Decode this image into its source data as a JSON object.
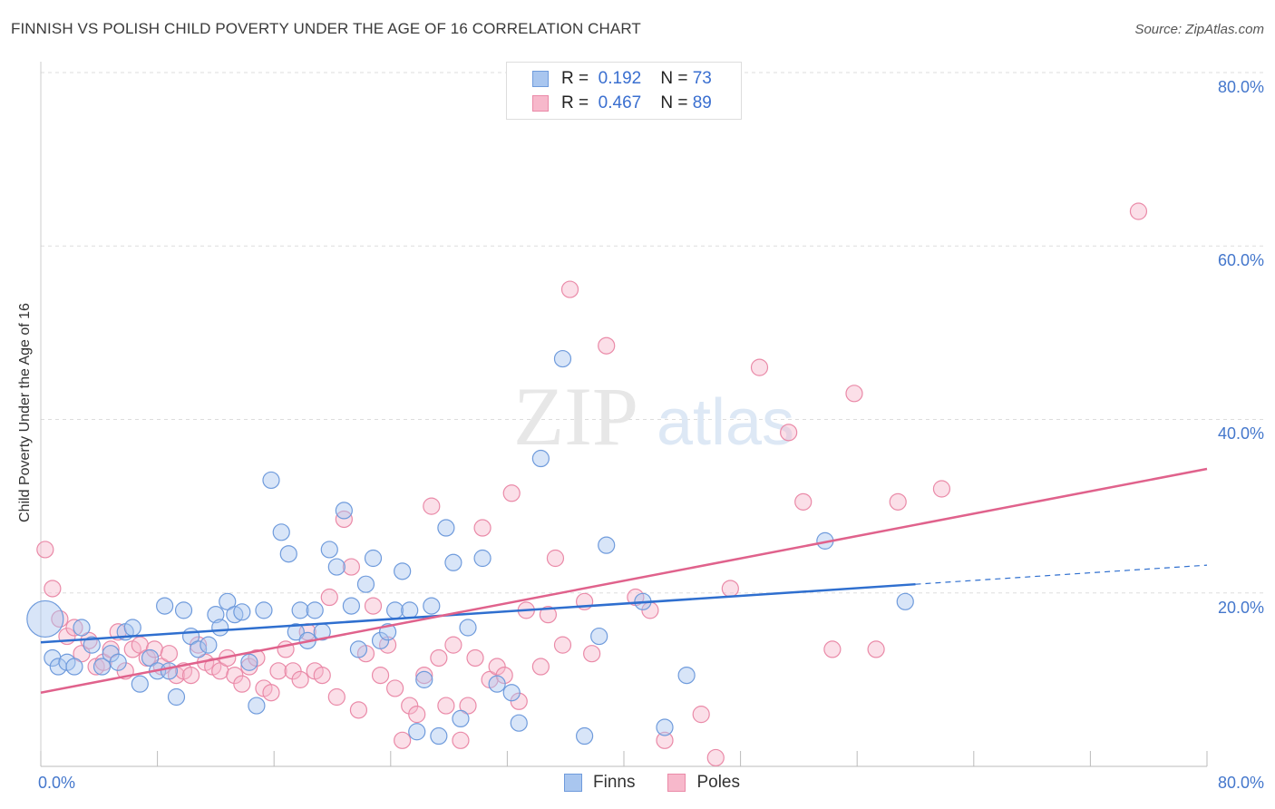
{
  "header": {
    "title": "FINNISH VS POLISH CHILD POVERTY UNDER THE AGE OF 16 CORRELATION CHART",
    "source": "Source: ZipAtlas.com"
  },
  "watermark": {
    "zip": "ZIP",
    "atlas": "atlas"
  },
  "legend": {
    "finns": {
      "r_label": "R =",
      "r_value": "0.192",
      "n_label": "N =",
      "n_value": "73"
    },
    "poles": {
      "r_label": "R =",
      "r_value": "0.467",
      "n_label": "N =",
      "n_value": "89"
    }
  },
  "bottom_legend": {
    "finns": "Finns",
    "poles": "Poles"
  },
  "colors": {
    "finns_fill": "#a9c6ef",
    "finns_stroke": "#6f9bdc",
    "finns_line": "#2f6fcf",
    "poles_fill": "#f7b8cb",
    "poles_stroke": "#ea8aa8",
    "poles_line": "#e0628c",
    "tick_text": "#4477cc",
    "grid": "#dddddd"
  },
  "chart_data": {
    "type": "scatter",
    "title": "FINNISH VS POLISH CHILD POVERTY UNDER THE AGE OF 16 CORRELATION CHART",
    "xlabel": "",
    "ylabel": "Child Poverty Under the Age of 16",
    "xlim": [
      0,
      80
    ],
    "ylim": [
      0,
      80
    ],
    "x_tick_labels": [
      "0.0%",
      "80.0%"
    ],
    "y_tick_labels": [
      "20.0%",
      "40.0%",
      "60.0%",
      "80.0%"
    ],
    "y_ticks": [
      20,
      40,
      60,
      80
    ],
    "grid": true,
    "legend_position": "top-center",
    "series": [
      {
        "name": "Finns",
        "r": 0.192,
        "n": 73,
        "trend": {
          "x": [
            0,
            60
          ],
          "y": [
            14.3,
            21.0
          ],
          "dashed_to": [
            80,
            23.2
          ]
        },
        "points": [
          [
            0.3,
            17.0
          ],
          [
            0.8,
            12.5
          ],
          [
            1.2,
            11.5
          ],
          [
            1.8,
            12.0
          ],
          [
            2.3,
            11.5
          ],
          [
            2.8,
            16.0
          ],
          [
            3.5,
            14.0
          ],
          [
            4.2,
            11.5
          ],
          [
            4.8,
            13.0
          ],
          [
            5.3,
            12.0
          ],
          [
            5.8,
            15.5
          ],
          [
            6.3,
            16.0
          ],
          [
            6.8,
            9.5
          ],
          [
            7.5,
            12.5
          ],
          [
            8.0,
            11.0
          ],
          [
            8.5,
            18.5
          ],
          [
            8.8,
            11.0
          ],
          [
            9.3,
            8.0
          ],
          [
            9.8,
            18.0
          ],
          [
            10.3,
            15.0
          ],
          [
            10.8,
            13.5
          ],
          [
            11.5,
            14.0
          ],
          [
            12.0,
            17.5
          ],
          [
            12.3,
            16.0
          ],
          [
            12.8,
            19.0
          ],
          [
            13.3,
            17.5
          ],
          [
            13.8,
            17.8
          ],
          [
            14.3,
            12.0
          ],
          [
            14.8,
            7.0
          ],
          [
            15.3,
            18.0
          ],
          [
            15.8,
            33.0
          ],
          [
            16.5,
            27.0
          ],
          [
            17.0,
            24.5
          ],
          [
            17.5,
            15.5
          ],
          [
            17.8,
            18.0
          ],
          [
            18.3,
            14.5
          ],
          [
            18.8,
            18.0
          ],
          [
            19.3,
            15.5
          ],
          [
            19.8,
            25.0
          ],
          [
            20.3,
            23.0
          ],
          [
            20.8,
            29.5
          ],
          [
            21.3,
            18.5
          ],
          [
            21.8,
            13.5
          ],
          [
            22.3,
            21.0
          ],
          [
            22.8,
            24.0
          ],
          [
            23.3,
            14.5
          ],
          [
            23.8,
            15.5
          ],
          [
            24.3,
            18.0
          ],
          [
            24.8,
            22.5
          ],
          [
            25.3,
            18.0
          ],
          [
            25.8,
            4.0
          ],
          [
            26.3,
            10.0
          ],
          [
            26.8,
            18.5
          ],
          [
            27.3,
            3.5
          ],
          [
            27.8,
            27.5
          ],
          [
            28.3,
            23.5
          ],
          [
            28.8,
            5.5
          ],
          [
            29.3,
            16.0
          ],
          [
            30.3,
            24.0
          ],
          [
            31.3,
            9.5
          ],
          [
            32.3,
            8.5
          ],
          [
            32.8,
            5.0
          ],
          [
            34.3,
            35.5
          ],
          [
            35.8,
            47.0
          ],
          [
            37.3,
            3.5
          ],
          [
            38.3,
            15.0
          ],
          [
            38.8,
            25.5
          ],
          [
            41.3,
            19.0
          ],
          [
            42.8,
            4.5
          ],
          [
            44.3,
            10.5
          ],
          [
            53.8,
            26.0
          ],
          [
            59.3,
            19.0
          ]
        ]
      },
      {
        "name": "Poles",
        "r": 0.467,
        "n": 89,
        "trend": {
          "x": [
            0,
            80
          ],
          "y": [
            8.5,
            34.3
          ]
        },
        "points": [
          [
            0.3,
            25.0
          ],
          [
            0.8,
            20.5
          ],
          [
            1.3,
            17.0
          ],
          [
            1.8,
            15.0
          ],
          [
            2.3,
            16.0
          ],
          [
            2.8,
            13.0
          ],
          [
            3.3,
            14.5
          ],
          [
            3.8,
            11.5
          ],
          [
            4.3,
            12.0
          ],
          [
            4.8,
            13.5
          ],
          [
            5.3,
            15.5
          ],
          [
            5.8,
            11.0
          ],
          [
            6.3,
            13.5
          ],
          [
            6.8,
            14.0
          ],
          [
            7.3,
            12.5
          ],
          [
            7.8,
            13.5
          ],
          [
            8.3,
            11.5
          ],
          [
            8.8,
            13.0
          ],
          [
            9.3,
            10.5
          ],
          [
            9.8,
            11.0
          ],
          [
            10.3,
            10.5
          ],
          [
            10.8,
            14.0
          ],
          [
            11.3,
            12.0
          ],
          [
            11.8,
            11.5
          ],
          [
            12.3,
            11.0
          ],
          [
            12.8,
            12.5
          ],
          [
            13.3,
            10.5
          ],
          [
            13.8,
            9.5
          ],
          [
            14.3,
            11.5
          ],
          [
            14.8,
            12.5
          ],
          [
            15.3,
            9.0
          ],
          [
            15.8,
            8.5
          ],
          [
            16.3,
            11.0
          ],
          [
            16.8,
            13.5
          ],
          [
            17.3,
            11.0
          ],
          [
            17.8,
            10.0
          ],
          [
            18.3,
            15.5
          ],
          [
            18.8,
            11.0
          ],
          [
            19.3,
            10.5
          ],
          [
            19.8,
            19.5
          ],
          [
            20.3,
            8.0
          ],
          [
            20.8,
            28.5
          ],
          [
            21.3,
            23.0
          ],
          [
            21.8,
            6.5
          ],
          [
            22.3,
            13.0
          ],
          [
            22.8,
            18.5
          ],
          [
            23.3,
            10.5
          ],
          [
            23.8,
            14.0
          ],
          [
            24.3,
            9.0
          ],
          [
            24.8,
            3.0
          ],
          [
            25.3,
            7.0
          ],
          [
            25.8,
            6.0
          ],
          [
            26.3,
            10.5
          ],
          [
            26.8,
            30.0
          ],
          [
            27.3,
            12.5
          ],
          [
            27.8,
            7.0
          ],
          [
            28.3,
            14.0
          ],
          [
            28.8,
            3.0
          ],
          [
            29.3,
            7.0
          ],
          [
            29.8,
            12.5
          ],
          [
            30.3,
            27.5
          ],
          [
            30.8,
            10.0
          ],
          [
            31.3,
            11.5
          ],
          [
            31.8,
            10.5
          ],
          [
            32.3,
            31.5
          ],
          [
            32.8,
            7.5
          ],
          [
            33.3,
            18.0
          ],
          [
            34.3,
            11.5
          ],
          [
            34.8,
            17.5
          ],
          [
            35.3,
            24.0
          ],
          [
            35.8,
            14.0
          ],
          [
            36.3,
            55.0
          ],
          [
            37.3,
            19.0
          ],
          [
            37.8,
            13.0
          ],
          [
            38.8,
            48.5
          ],
          [
            40.8,
            19.5
          ],
          [
            41.8,
            18.0
          ],
          [
            42.8,
            3.0
          ],
          [
            45.3,
            6.0
          ],
          [
            46.3,
            1.0
          ],
          [
            47.3,
            20.5
          ],
          [
            49.3,
            46.0
          ],
          [
            51.3,
            38.5
          ],
          [
            52.3,
            30.5
          ],
          [
            54.3,
            13.5
          ],
          [
            55.8,
            43.0
          ],
          [
            57.3,
            13.5
          ],
          [
            58.8,
            30.5
          ],
          [
            61.8,
            32.0
          ],
          [
            75.3,
            64.0
          ]
        ]
      }
    ]
  }
}
